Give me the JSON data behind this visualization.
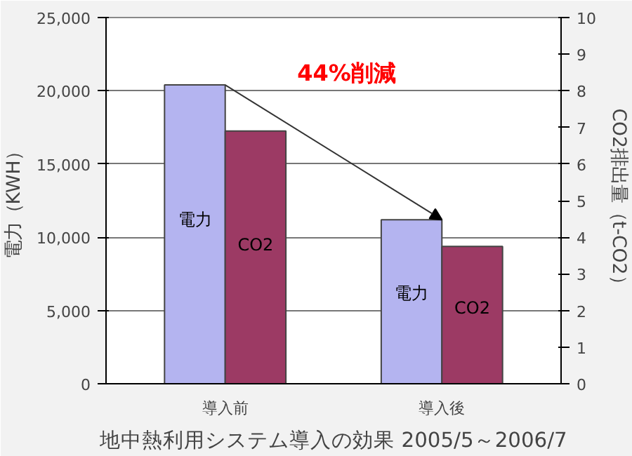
{
  "chart_data": {
    "type": "bar",
    "xlabel": "地中熱利用システム導入の効果 2005/5～2006/7",
    "ylabel": "電力（KWH）",
    "y2label": "CO2排出量（t-CO2）",
    "categories": [
      "導入前",
      "導入後"
    ],
    "series": [
      {
        "name": "電力",
        "color": "#b4b4f0",
        "values": [
          20400,
          11200
        ]
      },
      {
        "name": "CO2",
        "color": "#9c3a64",
        "values": [
          6.9,
          3.75
        ],
        "axis": "y2"
      }
    ],
    "ylim": [
      0,
      25000
    ],
    "yticks": [
      {
        "value": 0,
        "label": "0"
      },
      {
        "value": 5000,
        "label": "5,000"
      },
      {
        "value": 10000,
        "label": "10,000"
      },
      {
        "value": 15000,
        "label": "15,000"
      },
      {
        "value": 20000,
        "label": "20,000"
      },
      {
        "value": 25000,
        "label": "25,000"
      }
    ],
    "y2lim": [
      0,
      10
    ],
    "y2ticks": [
      0,
      1,
      2,
      3,
      4,
      5,
      6,
      7,
      8,
      9,
      10
    ],
    "annotations": [
      "44%削減"
    ],
    "grid": "y"
  }
}
